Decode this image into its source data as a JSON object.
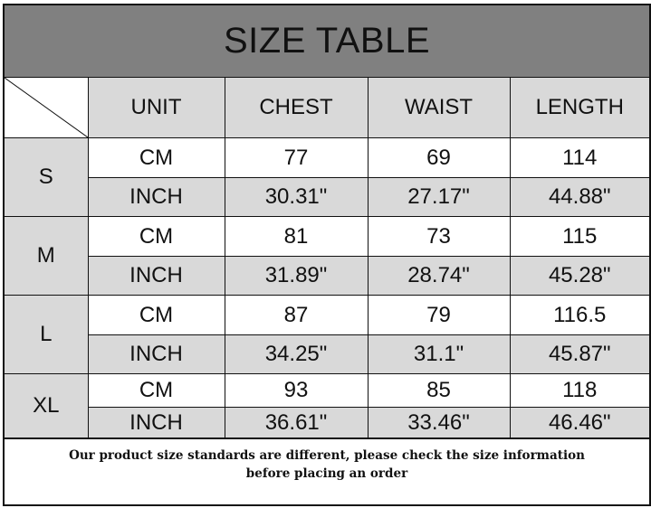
{
  "title": "SIZE TABLE",
  "headers": [
    "UNIT",
    "CHEST",
    "WAIST",
    "LENGTH"
  ],
  "sizes": [
    {
      "size": "S",
      "rows": [
        {
          "unit": "CM",
          "chest": "77",
          "waist": "69",
          "length": "114"
        },
        {
          "unit": "INCH",
          "chest": "30.31\"",
          "waist": "27.17\"",
          "length": "44.88\""
        }
      ]
    },
    {
      "size": "M",
      "rows": [
        {
          "unit": "CM",
          "chest": "81",
          "waist": "73",
          "length": "115"
        },
        {
          "unit": "INCH",
          "chest": "31.89\"",
          "waist": "28.74\"",
          "length": "45.28\""
        }
      ]
    },
    {
      "size": "L",
      "rows": [
        {
          "unit": "CM",
          "chest": "87",
          "waist": "79",
          "length": "116.5"
        },
        {
          "unit": "INCH",
          "chest": "34.25\"",
          "waist": "31.1\"",
          "length": "45.87\""
        }
      ]
    },
    {
      "size": "XL",
      "rows": [
        {
          "unit": "CM",
          "chest": "93",
          "waist": "85",
          "length": "118"
        },
        {
          "unit": "INCH",
          "chest": "36.61\"",
          "waist": "33.46\"",
          "length": "46.46\""
        }
      ]
    }
  ],
  "footer": {
    "line1": "Our product size standards are different, please check the size information",
    "line2": "before placing an order"
  },
  "colors": {
    "title_bg": "#808080",
    "shaded_cell": "#d9d9d9",
    "border": "#111111"
  }
}
